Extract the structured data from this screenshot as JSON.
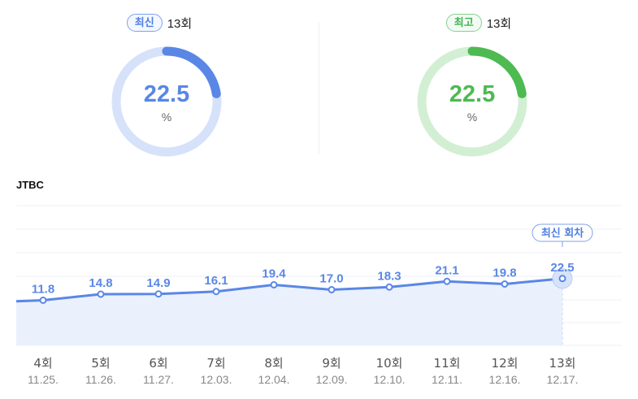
{
  "summary": {
    "latest": {
      "badge": "최신",
      "episode": "13회",
      "value": "22.5",
      "unit": "%",
      "fraction": 0.225,
      "color": "#5a87e6",
      "track": "#d6e2f9"
    },
    "highest": {
      "badge": "최고",
      "episode": "13회",
      "value": "22.5",
      "unit": "%",
      "fraction": 0.225,
      "color": "#4dba52",
      "track": "#d2efd4"
    }
  },
  "chart_data": {
    "type": "area",
    "title": "JTBC",
    "categories": [
      "4회",
      "5회",
      "6회",
      "7회",
      "8회",
      "9회",
      "10회",
      "11회",
      "12회",
      "13회"
    ],
    "dates": [
      "11.25.",
      "11.26.",
      "11.27.",
      "12.03.",
      "12.04.",
      "12.09.",
      "12.10.",
      "12.11.",
      "12.16.",
      "12.17."
    ],
    "values": [
      11.8,
      14.8,
      14.9,
      16.1,
      19.4,
      17.0,
      18.3,
      21.1,
      19.8,
      22.5
    ],
    "value_labels": [
      "11.8",
      "14.8",
      "14.9",
      "16.1",
      "19.4",
      "17.0",
      "18.3",
      "21.1",
      "19.8",
      "22.5"
    ],
    "grid": true,
    "highlight": {
      "index": 9,
      "label": "최신 회차"
    },
    "line_color": "#5a87e6",
    "fill_color": "#eaf1fd"
  }
}
